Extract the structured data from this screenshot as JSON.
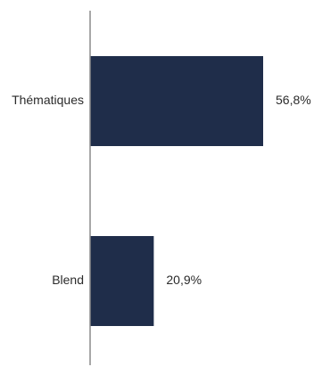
{
  "chart_data": {
    "type": "bar",
    "orientation": "horizontal",
    "categories": [
      "Thématiques",
      "Blend"
    ],
    "values": [
      56.8,
      20.9
    ],
    "value_labels": [
      "56,8%",
      "20,9%"
    ],
    "unit": "%",
    "xlim": [
      0,
      100
    ],
    "grid": false,
    "legend": "none"
  },
  "colors": {
    "bar": "#1f2d4a",
    "axis": "#8c8c8c",
    "text": "#2b2b2b"
  }
}
